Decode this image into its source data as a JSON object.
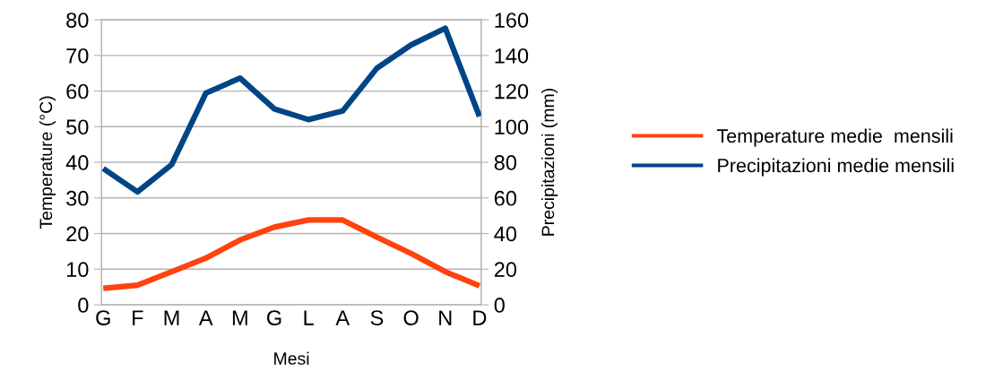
{
  "chart_data": {
    "type": "line",
    "xlabel": "Mesi",
    "ylabel": "Temperature (°C)",
    "y2label": "Precipitazioni (mm)",
    "categories": [
      "G",
      "F",
      "M",
      "A",
      "M",
      "G",
      "L",
      "A",
      "S",
      "O",
      "N",
      "D"
    ],
    "series": [
      {
        "name": "Temperature medie  mensili",
        "color": "#ff420e",
        "values": [
          4.6,
          5.5,
          9.3,
          13.1,
          18.2,
          21.8,
          23.8,
          23.8,
          19.0,
          14.4,
          9.3,
          5.3
        ]
      },
      {
        "name": "Precipitazioni medie mensili",
        "color": "#004586",
        "axis": "y2",
        "values": [
          76.5,
          63.4,
          78.7,
          118.8,
          127.3,
          110,
          104,
          108.8,
          132.8,
          145.9,
          155.3,
          105.8
        ]
      }
    ],
    "ylim": [
      0,
      80
    ],
    "yticks": [
      0,
      10,
      20,
      30,
      40,
      50,
      60,
      70,
      80
    ],
    "y2lim": [
      0,
      160
    ],
    "y2ticks": [
      0,
      20,
      40,
      60,
      80,
      100,
      120,
      140,
      160
    ],
    "grid": "y",
    "legend": "right",
    "marker": "none",
    "line_style": "solid"
  }
}
